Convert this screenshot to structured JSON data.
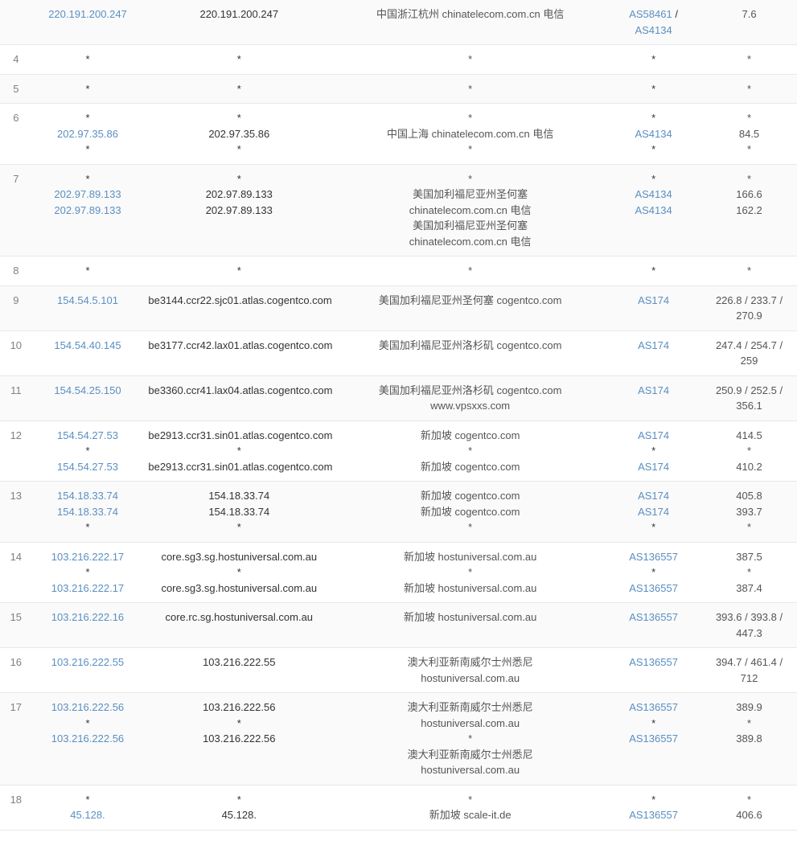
{
  "rows": [
    {
      "num": "",
      "even": true,
      "ip_lines": [
        {
          "text": "220.191.200.247",
          "link": true
        }
      ],
      "host_lines": [
        "220.191.200.247"
      ],
      "loc_lines": [
        "中国浙江杭州 chinatelecom.com.cn 电信"
      ],
      "asn_lines": [
        {
          "text": "AS58461",
          "link": true
        },
        {
          "text": " / ",
          "link": false
        },
        {
          "text": "AS4134",
          "link": true
        }
      ],
      "asn_join": "same",
      "time_lines": [
        "7.6"
      ]
    },
    {
      "num": "4",
      "even": false,
      "ip_lines": [
        {
          "text": "*",
          "link": false
        }
      ],
      "host_lines": [
        "*"
      ],
      "loc_lines": [
        "*"
      ],
      "asn_lines": [
        {
          "text": "*",
          "link": false
        }
      ],
      "time_lines": [
        "*"
      ]
    },
    {
      "num": "5",
      "even": true,
      "ip_lines": [
        {
          "text": "*",
          "link": false
        }
      ],
      "host_lines": [
        "*"
      ],
      "loc_lines": [
        "*"
      ],
      "asn_lines": [
        {
          "text": "*",
          "link": false
        }
      ],
      "time_lines": [
        "*"
      ]
    },
    {
      "num": "6",
      "even": false,
      "ip_lines": [
        {
          "text": "*",
          "link": false
        },
        {
          "text": "202.97.35.86",
          "link": true
        },
        {
          "text": "*",
          "link": false
        }
      ],
      "host_lines": [
        "*",
        "202.97.35.86",
        "*"
      ],
      "loc_lines": [
        "*",
        "中国上海 chinatelecom.com.cn 电信",
        "*"
      ],
      "asn_lines": [
        {
          "text": "*",
          "link": false
        },
        {
          "text": "AS4134",
          "link": true
        },
        {
          "text": "*",
          "link": false
        }
      ],
      "time_lines": [
        "*",
        "84.5",
        "*"
      ]
    },
    {
      "num": "7",
      "even": true,
      "ip_lines": [
        {
          "text": "*",
          "link": false
        },
        {
          "text": "202.97.89.133",
          "link": true
        },
        {
          "text": "202.97.89.133",
          "link": true
        }
      ],
      "host_lines": [
        "*",
        "202.97.89.133",
        "202.97.89.133"
      ],
      "loc_lines": [
        "*",
        "美国加利福尼亚州圣何塞",
        "chinatelecom.com.cn 电信",
        "美国加利福尼亚州圣何塞",
        "chinatelecom.com.cn 电信"
      ],
      "asn_lines": [
        {
          "text": "*",
          "link": false
        },
        {
          "text": "AS4134",
          "link": true
        },
        {
          "text": "AS4134",
          "link": true
        }
      ],
      "time_lines": [
        "*",
        "166.6",
        "162.2"
      ]
    },
    {
      "num": "8",
      "even": false,
      "ip_lines": [
        {
          "text": "*",
          "link": false
        }
      ],
      "host_lines": [
        "*"
      ],
      "loc_lines": [
        "*"
      ],
      "asn_lines": [
        {
          "text": "*",
          "link": false
        }
      ],
      "time_lines": [
        "*"
      ]
    },
    {
      "num": "9",
      "even": true,
      "ip_lines": [
        {
          "text": "154.54.5.101",
          "link": true
        }
      ],
      "host_lines": [
        "be3144.ccr22.sjc01.atlas.cogentco.com"
      ],
      "loc_lines": [
        "美国加利福尼亚州圣何塞 cogentco.com"
      ],
      "asn_lines": [
        {
          "text": "AS174",
          "link": true
        }
      ],
      "time_lines": [
        "226.8 / 233.7 / 270.9"
      ]
    },
    {
      "num": "10",
      "even": false,
      "ip_lines": [
        {
          "text": "154.54.40.145",
          "link": true
        }
      ],
      "host_lines": [
        "be3177.ccr42.lax01.atlas.cogentco.com"
      ],
      "loc_lines": [
        "美国加利福尼亚州洛杉矶 cogentco.com"
      ],
      "asn_lines": [
        {
          "text": "AS174",
          "link": true
        }
      ],
      "time_lines": [
        "247.4 / 254.7 / 259"
      ]
    },
    {
      "num": "11",
      "even": true,
      "ip_lines": [
        {
          "text": "154.54.25.150",
          "link": true
        }
      ],
      "host_lines": [
        "be3360.ccr41.lax04.atlas.cogentco.com"
      ],
      "loc_lines": [
        "美国加利福尼亚州洛杉矶 cogentco.com",
        "www.vpsxxs.com"
      ],
      "asn_lines": [
        {
          "text": "AS174",
          "link": true
        }
      ],
      "time_lines": [
        "250.9 / 252.5 / 356.1"
      ]
    },
    {
      "num": "12",
      "even": false,
      "ip_lines": [
        {
          "text": "154.54.27.53",
          "link": true
        },
        {
          "text": "*",
          "link": false
        },
        {
          "text": "154.54.27.53",
          "link": true
        }
      ],
      "host_lines": [
        "be2913.ccr31.sin01.atlas.cogentco.com",
        "*",
        "be2913.ccr31.sin01.atlas.cogentco.com"
      ],
      "loc_lines": [
        "新加坡 cogentco.com",
        "*",
        "新加坡 cogentco.com"
      ],
      "asn_lines": [
        {
          "text": "AS174",
          "link": true
        },
        {
          "text": "*",
          "link": false
        },
        {
          "text": "AS174",
          "link": true
        }
      ],
      "time_lines": [
        "414.5",
        "*",
        "410.2"
      ]
    },
    {
      "num": "13",
      "even": true,
      "ip_lines": [
        {
          "text": "154.18.33.74",
          "link": true
        },
        {
          "text": "154.18.33.74",
          "link": true
        },
        {
          "text": "*",
          "link": false
        }
      ],
      "host_lines": [
        "154.18.33.74",
        "154.18.33.74",
        "*"
      ],
      "loc_lines": [
        "新加坡 cogentco.com",
        "新加坡 cogentco.com",
        "*"
      ],
      "asn_lines": [
        {
          "text": "AS174",
          "link": true
        },
        {
          "text": "AS174",
          "link": true
        },
        {
          "text": "*",
          "link": false
        }
      ],
      "time_lines": [
        "405.8",
        "393.7",
        "*"
      ]
    },
    {
      "num": "14",
      "even": false,
      "ip_lines": [
        {
          "text": "103.216.222.17",
          "link": true
        },
        {
          "text": "*",
          "link": false
        },
        {
          "text": "103.216.222.17",
          "link": true
        }
      ],
      "host_lines": [
        "core.sg3.sg.hostuniversal.com.au",
        "*",
        "core.sg3.sg.hostuniversal.com.au"
      ],
      "loc_lines": [
        "新加坡 hostuniversal.com.au",
        "*",
        "新加坡 hostuniversal.com.au"
      ],
      "asn_lines": [
        {
          "text": "AS136557",
          "link": true
        },
        {
          "text": "*",
          "link": false
        },
        {
          "text": "AS136557",
          "link": true
        }
      ],
      "time_lines": [
        "387.5",
        "*",
        "387.4"
      ]
    },
    {
      "num": "15",
      "even": true,
      "ip_lines": [
        {
          "text": "103.216.222.16",
          "link": true
        }
      ],
      "host_lines": [
        "core.rc.sg.hostuniversal.com.au"
      ],
      "loc_lines": [
        "新加坡 hostuniversal.com.au"
      ],
      "asn_lines": [
        {
          "text": "AS136557",
          "link": true
        }
      ],
      "time_lines": [
        "393.6 / 393.8 / 447.3"
      ]
    },
    {
      "num": "16",
      "even": false,
      "ip_lines": [
        {
          "text": "103.216.222.55",
          "link": true
        }
      ],
      "host_lines": [
        "103.216.222.55"
      ],
      "loc_lines": [
        "澳大利亚新南威尔士州悉尼",
        "hostuniversal.com.au"
      ],
      "asn_lines": [
        {
          "text": "AS136557",
          "link": true
        }
      ],
      "time_lines": [
        "394.7 / 461.4 / 712"
      ]
    },
    {
      "num": "17",
      "even": true,
      "ip_lines": [
        {
          "text": "103.216.222.56",
          "link": true
        },
        {
          "text": "*",
          "link": false
        },
        {
          "text": "103.216.222.56",
          "link": true
        }
      ],
      "host_lines": [
        "103.216.222.56",
        "*",
        "103.216.222.56"
      ],
      "loc_lines": [
        "澳大利亚新南威尔士州悉尼",
        "hostuniversal.com.au",
        "*",
        "澳大利亚新南威尔士州悉尼",
        "hostuniversal.com.au"
      ],
      "asn_lines": [
        {
          "text": "AS136557",
          "link": true
        },
        {
          "text": "*",
          "link": false
        },
        {
          "text": "AS136557",
          "link": true
        }
      ],
      "time_lines": [
        "389.9",
        "*",
        "389.8"
      ]
    },
    {
      "num": "18",
      "even": false,
      "ip_lines": [
        {
          "text": "*",
          "link": false
        },
        {
          "text": "45.128.",
          "link": true
        }
      ],
      "host_lines": [
        "*",
        "45.128."
      ],
      "loc_lines": [
        "*",
        "新加坡 scale-it.de"
      ],
      "asn_lines": [
        {
          "text": "*",
          "link": false
        },
        {
          "text": "AS136557",
          "link": true
        }
      ],
      "time_lines": [
        "*",
        "406.6"
      ]
    }
  ]
}
